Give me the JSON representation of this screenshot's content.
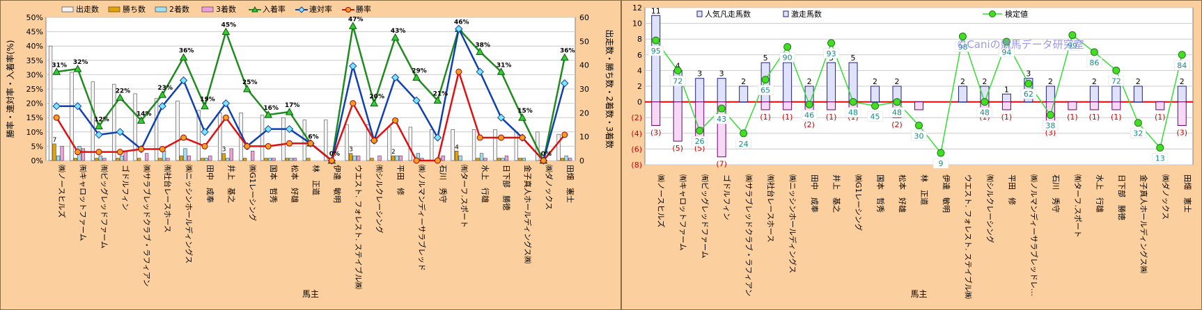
{
  "chart_data": [
    {
      "type": "bar+line",
      "title": "",
      "xlabel": "馬主",
      "ylabel_left": "勝率・連対率・入着率(%)",
      "ylabel_right": "出走数・勝ち数・2着数・3着数",
      "ylim_left": [
        0,
        50
      ],
      "ylim_right": [
        0,
        60
      ],
      "yticks_left": [
        "0%",
        "5%",
        "10%",
        "15%",
        "20%",
        "25%",
        "30%",
        "35%",
        "40%",
        "45%",
        "50%"
      ],
      "yticks_right": [
        "0",
        "10",
        "20",
        "30",
        "40",
        "50",
        "60"
      ],
      "grid": true,
      "legend_position": "top",
      "categories": [
        "㈱ノースヒルズ",
        "㈲キャロットファーム",
        "㈲ビッグレッドファーム",
        "ゴドルフィン",
        "㈱サラブレッドクラブ・ラフィアン",
        "㈲社台レースホース",
        "㈱ニッシンホールディングス",
        "田中　成奉",
        "井上　基之",
        "㈱G1レーシング",
        "国本　哲秀",
        "松本　好雄",
        "林　正道",
        "伊達　敏明",
        "ウエスト. フォレスト. ステイブル㈱",
        "㈲シルクレーシング",
        "平田　修",
        "㈱ノルマンディーサラブレッド",
        "石川　秀守",
        "㈲ターフ.スポート",
        "水上　行雄",
        "日下部　勝徳",
        "金子真人ホールディングス㈱",
        "㈱ダノックス",
        "田畑　憲士"
      ],
      "series": [
        {
          "name": "出走数",
          "axis": "right",
          "kind": "bar",
          "color": "#f4f4f4",
          "values": [
            48,
            37,
            33,
            32,
            28,
            26,
            25,
            21,
            20,
            20,
            19,
            18,
            17,
            17,
            15,
            15,
            14,
            14,
            13,
            13,
            13,
            13,
            12,
            12,
            11
          ]
        },
        {
          "name": "勝ち数",
          "axis": "right",
          "kind": "bar",
          "color": "#e8a200",
          "values": [
            7,
            1,
            1,
            1,
            1,
            1,
            2,
            1,
            3,
            1,
            1,
            1,
            1,
            0,
            3,
            1,
            2,
            0,
            0,
            4,
            1,
            1,
            1,
            0,
            1
          ]
        },
        {
          "name": "2着数",
          "axis": "right",
          "kind": "bar",
          "color": "#9fe0f0",
          "values": [
            2,
            6,
            2,
            2,
            0,
            4,
            5,
            1,
            1,
            0,
            1,
            1,
            0,
            0,
            2,
            0,
            2,
            3,
            1,
            2,
            3,
            1,
            1,
            0,
            2
          ]
        },
        {
          "name": "3着数",
          "axis": "right",
          "kind": "bar",
          "color": "#f0a0d8",
          "values": [
            6,
            5,
            1,
            4,
            3,
            1,
            2,
            2,
            5,
            4,
            1,
            1,
            0,
            0,
            2,
            2,
            2,
            1,
            2,
            0,
            1,
            2,
            0,
            0,
            1
          ]
        },
        {
          "name": "入着率",
          "axis": "left",
          "kind": "line",
          "color": "#1f8a1f",
          "marker": "triangle",
          "values": [
            31,
            32,
            12,
            22,
            14,
            23,
            36,
            19,
            45,
            25,
            16,
            17,
            6,
            0,
            47,
            20,
            43,
            29,
            21,
            46,
            38,
            31,
            15,
            0,
            36
          ]
        },
        {
          "name": "連対率",
          "axis": "left",
          "kind": "line",
          "color": "#1040b0",
          "marker": "diamond",
          "values": [
            19,
            19,
            9,
            10,
            4,
            19,
            28,
            10,
            20,
            5,
            11,
            11,
            6,
            0,
            33,
            7,
            29,
            21,
            8,
            46,
            31,
            15,
            8,
            0,
            27
          ]
        },
        {
          "name": "勝率",
          "axis": "left",
          "kind": "line",
          "color": "#e01010",
          "marker": "circle",
          "values": [
            15,
            3,
            3,
            3,
            4,
            4,
            8,
            5,
            15,
            5,
            5,
            6,
            6,
            0,
            20,
            7,
            14,
            0,
            0,
            31,
            8,
            8,
            8,
            0,
            9
          ]
        }
      ],
      "data_labels": {
        "入着率": [
          "31%",
          "32%",
          "12%",
          "22%",
          "14%",
          "23%",
          "36%",
          "19%",
          "45%",
          "25%",
          "16%",
          "17%",
          "6%",
          "0%",
          "47%",
          "20%",
          "43%",
          "29%",
          "21%",
          "46%",
          "38%",
          "31%",
          "15%",
          "0%",
          "36%"
        ],
        "勝ち数": [
          "7",
          "",
          "",
          "",
          "",
          "",
          "",
          "",
          "3",
          "",
          "",
          "",
          "",
          "",
          "3",
          "",
          "2",
          "",
          "",
          "4",
          "",
          "",
          "",
          "",
          ""
        ]
      }
    },
    {
      "type": "bar+line",
      "title": "",
      "xlabel": "馬主",
      "ylim_left": [
        -8,
        12
      ],
      "yticks_left": [
        "(8)",
        "(6)",
        "(4)",
        "(2)",
        "0",
        "2",
        "4",
        "6",
        "8",
        "10",
        "12"
      ],
      "ylim_right": [
        0,
        120
      ],
      "grid": true,
      "legend_position": "top",
      "watermark": "©Caniの競馬データ研究室",
      "categories": [
        "㈱ノースヒルズ",
        "㈲キャロットファーム",
        "㈲ビッグレッドファーム",
        "ゴドルフィン",
        "㈱サラブレッドクラブ・ラフィアン",
        "㈲社台レースホース",
        "㈱ニッシンホールディングス",
        "田中　成奉",
        "井上　基之",
        "㈱G1レーシング",
        "国本　哲秀",
        "松本　好雄",
        "林　正道",
        "伊達　敏明",
        "ウエスト. フォレスト. ステイブル㈱",
        "㈲シルクレーシング",
        "平田　修",
        "㈱ノルマンディーサラブレッドレ…",
        "石川　秀守",
        "㈲ターフ.スポート",
        "水上　行雄",
        "日下部　勝徳",
        "金子真人ホールディングス㈱",
        "㈱ダノックス",
        "田畑　憲士"
      ],
      "series": [
        {
          "name": "人気凡走馬数",
          "kind": "bar",
          "color": "#c0c4f0",
          "values": [
            11,
            4,
            3,
            3,
            2,
            5,
            5,
            2,
            5,
            5,
            2,
            2,
            0,
            0,
            2,
            2,
            1,
            3,
            2,
            0,
            2,
            2,
            2,
            0,
            2
          ]
        },
        {
          "name": "激走馬数",
          "kind": "bar",
          "color": "#f0b0f0",
          "values": [
            -3,
            -5,
            -5,
            -7,
            0,
            -1,
            -1,
            -2,
            -1,
            -1,
            0,
            -2,
            -1,
            0,
            0,
            -1,
            -1,
            0,
            -3,
            -1,
            -1,
            -1,
            0,
            -1,
            -3
          ]
        },
        {
          "name": "検定値",
          "kind": "line",
          "axis": "right",
          "color": "#33dd33",
          "marker": "circle",
          "values": [
            95,
            72,
            26,
            43,
            24,
            65,
            90,
            46,
            93,
            48,
            45,
            48,
            30,
            9,
            98,
            48,
            94,
            62,
            38,
            99,
            86,
            72,
            32,
            13,
            84
          ]
        }
      ],
      "bar_labels_pos": [
        "11",
        "4",
        "3",
        "3",
        "2",
        "5",
        "5",
        "2",
        "5",
        "5",
        "2",
        "2",
        "",
        "",
        "2",
        "2",
        "1",
        "3",
        "2",
        "",
        "2",
        "2",
        "2",
        "",
        "2"
      ],
      "bar_labels_neg": [
        "(3)",
        "(5)",
        "(5)",
        "(7)",
        "",
        "(1)",
        "(1)",
        "(2)",
        "(1)",
        "(1)",
        "",
        "(2)",
        "",
        "",
        "",
        "(1)",
        "(1)",
        "",
        "(3)",
        "(1)",
        "(1)",
        "(1)",
        "",
        "(1)",
        "(3)"
      ]
    }
  ]
}
